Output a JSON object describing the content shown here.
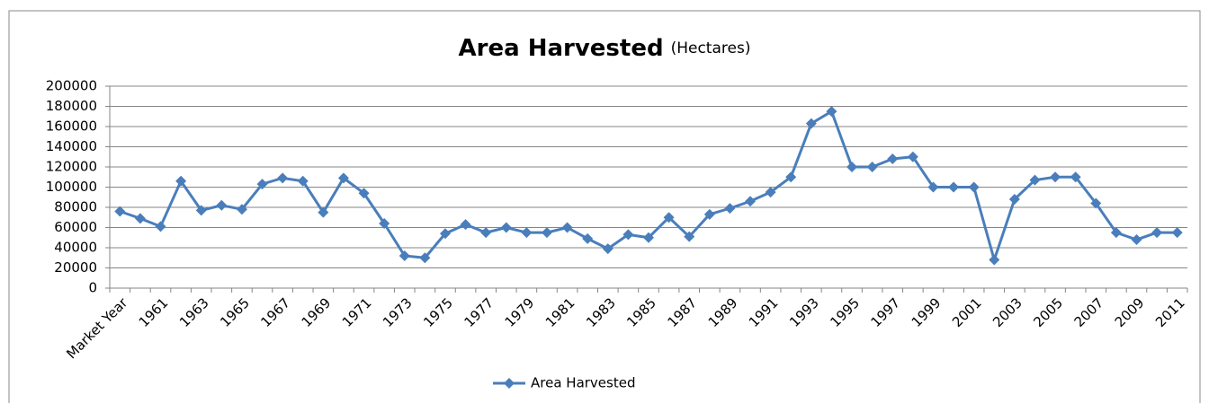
{
  "chart_data": {
    "type": "line",
    "title": "Area Harvested",
    "subtitle": "(Hectares)",
    "categories": [
      "Market Year",
      null,
      "1961",
      null,
      "1963",
      null,
      "1965",
      null,
      "1967",
      null,
      "1969",
      null,
      "1971",
      null,
      "1973",
      null,
      "1975",
      null,
      "1977",
      null,
      "1979",
      null,
      "1981",
      null,
      "1983",
      null,
      "1985",
      null,
      "1987",
      null,
      "1989",
      null,
      "1991",
      null,
      "1993",
      null,
      "1995",
      null,
      "1997",
      null,
      "1999",
      null,
      "2001",
      null,
      "2003",
      null,
      "2005",
      null,
      "2007",
      null,
      "2009",
      null,
      "2011"
    ],
    "series": [
      {
        "name": "Area Harvested",
        "color": "#4a7ebb",
        "values": [
          76000,
          69000,
          61000,
          106000,
          77000,
          82000,
          78000,
          103000,
          109000,
          106000,
          75000,
          109000,
          94000,
          64000,
          32000,
          30000,
          54000,
          63000,
          55000,
          60000,
          55000,
          55000,
          60000,
          49000,
          39000,
          53000,
          50000,
          70000,
          51000,
          73000,
          79000,
          86000,
          95000,
          110000,
          163000,
          175000,
          120000,
          120000,
          128000,
          130000,
          100000,
          100000,
          100000,
          28000,
          88000,
          107000,
          110000,
          110000,
          84000,
          55000,
          48000,
          55000,
          55000
        ]
      }
    ],
    "ylim": [
      0,
      200000
    ],
    "yticks": [
      0,
      20000,
      40000,
      60000,
      80000,
      100000,
      120000,
      140000,
      160000,
      180000,
      200000
    ],
    "grid": true,
    "legend": "bottom"
  }
}
